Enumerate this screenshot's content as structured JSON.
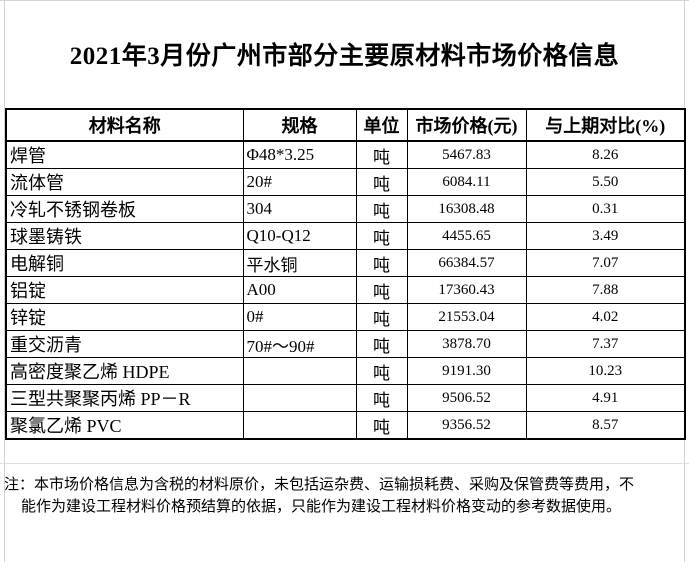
{
  "page": {
    "title": "2021年3月份广州市部分主要原材料市场价格信息"
  },
  "table": {
    "headers": [
      "材料名称",
      "规格",
      "单位",
      "市场价格(元)",
      "与上期对比(%)"
    ],
    "rows": [
      [
        "焊管",
        "Φ48*3.25",
        "吨",
        "5467.83",
        "8.26"
      ],
      [
        "流体管",
        "20#",
        "吨",
        "6084.11",
        "5.50"
      ],
      [
        "冷轧不锈钢卷板",
        "304",
        "吨",
        "16308.48",
        "0.31"
      ],
      [
        "球墨铸铁",
        "Q10-Q12",
        "吨",
        "4455.65",
        "3.49"
      ],
      [
        "电解铜",
        "平水铜",
        "吨",
        "66384.57",
        "7.07"
      ],
      [
        "铝锭",
        "A00",
        "吨",
        "17360.43",
        "7.88"
      ],
      [
        "锌锭",
        "0#",
        "吨",
        "21553.04",
        "4.02"
      ],
      [
        "重交沥青",
        "70#～90#",
        "吨",
        "3878.70",
        "7.37"
      ],
      [
        "高密度聚乙烯 HDPE",
        "",
        "吨",
        "9191.30",
        "10.23"
      ],
      [
        "三型共聚聚丙烯 PP－R",
        "",
        "吨",
        "9506.52",
        "4.91"
      ],
      [
        "聚氯乙烯 PVC",
        "",
        "吨",
        "9356.52",
        "8.57"
      ]
    ]
  },
  "note": {
    "lines": [
      "注：本市场价格信息为含税的材料原价，未包括运杂费、运输损耗费、采购及保管费等费用，不",
      "能作为建设工程材料价格预结算的依据，只能作为建设工程材料价格变动的参考数据使用。"
    ]
  },
  "colors": {
    "text": "#000000",
    "table_border": "#000000",
    "page_gridline": "#d4d4d4",
    "background": "#ffffff"
  }
}
